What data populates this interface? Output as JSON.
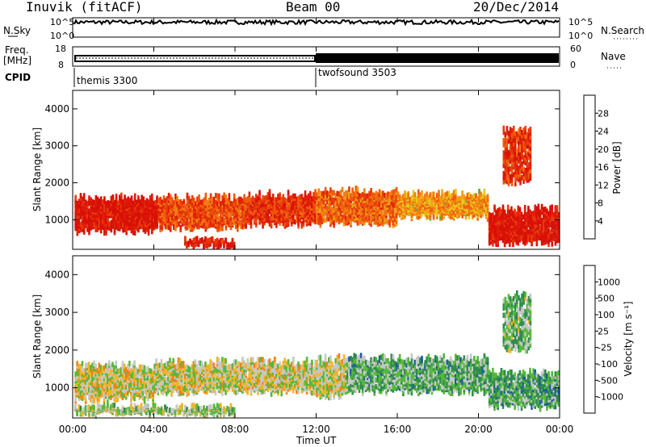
{
  "header": {
    "radar": "Inuvik (fitACF)",
    "beam": "Beam 00",
    "date": "20/Dec/2014"
  },
  "noise_panel": {
    "left_label": "N.Sky",
    "right_label": "N.Search",
    "y_ticks_left": [
      "10^5",
      "10^0"
    ],
    "y_ticks_right": [
      "10^5",
      "10^0"
    ]
  },
  "freq_panel": {
    "left_label_1": "Freq.",
    "left_label_2": "[MHz]",
    "right_label": "Nave",
    "y_ticks_left": [
      "18",
      "8"
    ],
    "y_ticks_right": [
      "60",
      "0"
    ]
  },
  "cpid": {
    "label": "CPID",
    "modes": [
      {
        "name": "themis 3300",
        "start_hour": 0
      },
      {
        "name": "twofsound 3503",
        "start_hour": 12
      }
    ]
  },
  "x_axis": {
    "label": "Time UT",
    "tick_labels": [
      "00:00",
      "04:00",
      "08:00",
      "12:00",
      "16:00",
      "20:00",
      "00:00"
    ],
    "tick_hours": [
      0,
      4,
      8,
      12,
      16,
      20,
      24
    ]
  },
  "power_panel": {
    "ylabel": "Slant Range [km]",
    "y_ticks": [
      "1000",
      "2000",
      "3000",
      "4000"
    ],
    "colorbar_label": "Power [dB]",
    "colorbar_ticks": [
      "28",
      "24",
      "20",
      "16",
      "12",
      "8",
      "4"
    ],
    "colors": [
      "#0a0aff",
      "#1e3c9e",
      "#2f7a4f",
      "#4fa84a",
      "#e8c81c",
      "#f0a01a",
      "#f07d12",
      "#f05a0e",
      "#e63c0a",
      "#e01e0a",
      "#d81008"
    ]
  },
  "velocity_panel": {
    "ylabel": "Slant Range [km]",
    "y_ticks": [
      "1000",
      "2000",
      "3000",
      "4000"
    ],
    "colorbar_label": "Velocity [m s⁻¹]",
    "colorbar_ticks": [
      "1000",
      "500",
      "100",
      "25",
      "-25",
      "-100",
      "-500",
      "-1000"
    ],
    "colors": [
      "#1432c8",
      "#1e5aa0",
      "#2f8a50",
      "#55b83c",
      "#c8c8c8",
      "#f0b428",
      "#f08214",
      "#ee5a0e",
      "#e01e0a"
    ]
  },
  "chart_data": {
    "type": "heatmap",
    "title": "Inuvik (fitACF)  Beam 00  20/Dec/2014",
    "xlabel": "Time UT",
    "ylabel": "Slant Range [km]",
    "xlim": [
      0,
      24
    ],
    "ylim": [
      200,
      4500
    ],
    "panels": [
      {
        "name": "Power",
        "units": "dB",
        "scale": [
          0,
          30
        ],
        "regions": [
          {
            "t0": 0.1,
            "t1": 4.2,
            "r0": 600,
            "r1": 1700,
            "value": 28
          },
          {
            "t0": 4.2,
            "t1": 8.5,
            "r0": 700,
            "r1": 1700,
            "value": 22
          },
          {
            "t0": 8.5,
            "t1": 12.0,
            "r0": 800,
            "r1": 1800,
            "value": 24
          },
          {
            "t0": 12.0,
            "t1": 16.0,
            "r0": 800,
            "r1": 1900,
            "value": 20
          },
          {
            "t0": 16.0,
            "t1": 20.5,
            "r0": 1000,
            "r1": 1800,
            "value": 16
          },
          {
            "t0": 20.5,
            "t1": 24.0,
            "r0": 300,
            "r1": 1400,
            "value": 28
          },
          {
            "t0": 5.5,
            "t1": 8.0,
            "r0": 250,
            "r1": 500,
            "value": 26
          },
          {
            "t0": 21.2,
            "t1": 22.6,
            "r0": 1900,
            "r1": 3600,
            "value": 24
          }
        ]
      },
      {
        "name": "Velocity",
        "units": "m s-1",
        "scale": [
          -1000,
          1000
        ],
        "regions": [
          {
            "t0": 0.1,
            "t1": 4.0,
            "r0": 600,
            "r1": 1700,
            "value": 80
          },
          {
            "t0": 4.0,
            "t1": 12.0,
            "r0": 800,
            "r1": 1800,
            "value": 60
          },
          {
            "t0": 12.0,
            "t1": 13.5,
            "r0": 700,
            "r1": 1900,
            "value": 30
          },
          {
            "t0": 13.5,
            "t1": 20.5,
            "r0": 800,
            "r1": 1900,
            "value": -250
          },
          {
            "t0": 20.5,
            "t1": 24.0,
            "r0": 400,
            "r1": 1500,
            "value": -300
          },
          {
            "t0": 0.1,
            "t1": 8.0,
            "r0": 250,
            "r1": 550,
            "value": -80
          },
          {
            "t0": 21.2,
            "t1": 22.6,
            "r0": 1900,
            "r1": 3600,
            "value": -200
          }
        ]
      }
    ]
  }
}
